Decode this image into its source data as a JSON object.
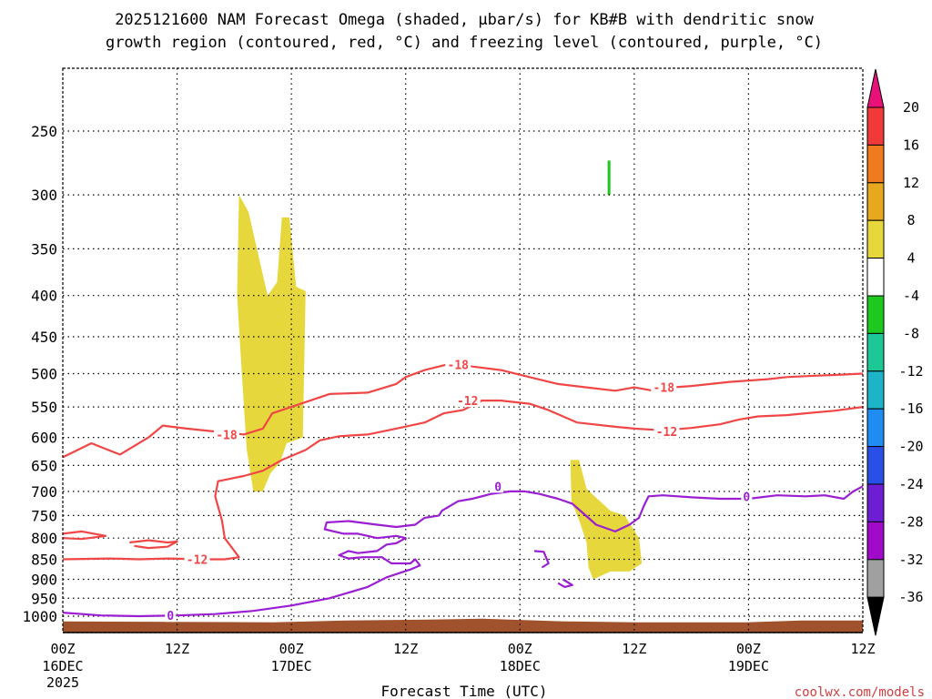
{
  "chart_data": {
    "type": "heatmap",
    "title_line1": "2025121600 NAM Forecast Omega (shaded, μbar/s) for KB#B with dendritic snow",
    "title_line2": "growth region (contoured, red, °C) and freezing level (contoured, purple, °C)",
    "xlabel": "Forecast Time (UTC)",
    "ylabel": "",
    "watermark": "coolwx.com/models",
    "x_unit": "forecast hour",
    "xlim": [
      0,
      84
    ],
    "ylim_hpa": [
      1050,
      200
    ],
    "y_ticks": [
      250,
      300,
      350,
      400,
      450,
      500,
      550,
      600,
      650,
      700,
      750,
      800,
      850,
      900,
      950,
      1000
    ],
    "x_ticks": [
      {
        "hour": 0,
        "label": "00Z",
        "sub1": "16DEC",
        "sub2": "2025"
      },
      {
        "hour": 12,
        "label": "12Z",
        "sub1": "",
        "sub2": ""
      },
      {
        "hour": 24,
        "label": "00Z",
        "sub1": "17DEC",
        "sub2": ""
      },
      {
        "hour": 36,
        "label": "12Z",
        "sub1": "",
        "sub2": ""
      },
      {
        "hour": 48,
        "label": "00Z",
        "sub1": "18DEC",
        "sub2": ""
      },
      {
        "hour": 60,
        "label": "12Z",
        "sub1": "",
        "sub2": ""
      },
      {
        "hour": 72,
        "label": "00Z",
        "sub1": "19DEC",
        "sub2": ""
      },
      {
        "hour": 84,
        "label": "12Z",
        "sub1": "",
        "sub2": ""
      }
    ],
    "colorbar": {
      "levels": [
        "20",
        "16",
        "12",
        "8",
        "4",
        "-4",
        "-8",
        "-12",
        "-16",
        "-20",
        "-24",
        "-28",
        "-32",
        "-36"
      ],
      "colors": [
        "#e8117a",
        "#f03a3a",
        "#f07a1e",
        "#e6a81e",
        "#e6d83c",
        "#ffffff",
        "#1ec81e",
        "#1ec896",
        "#1eb4c8",
        "#1e8cf0",
        "#2850e6",
        "#6e1ed2",
        "#a00ac8",
        "#a0a0a0",
        "#000000"
      ]
    },
    "omega_shaded": [
      {
        "value_range": "4 to 8",
        "color": "#e6d83c",
        "points": [
          [
            18.5,
            300
          ],
          [
            19.5,
            315
          ],
          [
            21.5,
            400
          ],
          [
            22.5,
            385
          ],
          [
            23.0,
            320
          ],
          [
            23.8,
            320
          ],
          [
            24.5,
            390
          ],
          [
            25.5,
            395
          ],
          [
            25.2,
            600
          ],
          [
            23.5,
            610
          ],
          [
            22.8,
            645
          ],
          [
            21.8,
            665
          ],
          [
            21.0,
            700
          ],
          [
            20.0,
            700
          ],
          [
            19.3,
            620
          ],
          [
            18.8,
            500
          ],
          [
            18.3,
            400
          ]
        ]
      },
      {
        "value_range": "4 to 8",
        "color": "#e6d83c",
        "points": [
          [
            53.3,
            640
          ],
          [
            54.2,
            640
          ],
          [
            55.0,
            695
          ],
          [
            57.5,
            740
          ],
          [
            59.0,
            750
          ],
          [
            60.5,
            800
          ],
          [
            60.8,
            860
          ],
          [
            59.5,
            880
          ],
          [
            57.5,
            880
          ],
          [
            55.7,
            900
          ],
          [
            55.2,
            870
          ],
          [
            55.0,
            810
          ],
          [
            54.2,
            760
          ],
          [
            53.4,
            720
          ]
        ]
      },
      {
        "value_range": "-8 to -4",
        "color": "#1ec81e",
        "points": [
          [
            57.2,
            272
          ],
          [
            57.5,
            272
          ],
          [
            57.5,
            300
          ],
          [
            57.2,
            300
          ]
        ]
      }
    ],
    "series": [
      {
        "name": "-18",
        "color": "#f04646",
        "points": [
          [
            0,
            635
          ],
          [
            3,
            610
          ],
          [
            6,
            630
          ],
          [
            9,
            600
          ],
          [
            10.5,
            580
          ],
          [
            13,
            585
          ],
          [
            16,
            590
          ],
          [
            19,
            595
          ],
          [
            21,
            585
          ],
          [
            22,
            560
          ],
          [
            25,
            545
          ],
          [
            28,
            530
          ],
          [
            32,
            528
          ],
          [
            35,
            515
          ],
          [
            36,
            505
          ],
          [
            38,
            495
          ],
          [
            41,
            485
          ],
          [
            43,
            490
          ],
          [
            46,
            495
          ],
          [
            49,
            505
          ],
          [
            52,
            515
          ],
          [
            55,
            520
          ],
          [
            58,
            525
          ],
          [
            60,
            520
          ],
          [
            62,
            525
          ],
          [
            64,
            520
          ],
          [
            66,
            518
          ],
          [
            68,
            515
          ],
          [
            70,
            512
          ],
          [
            72,
            510
          ],
          [
            74,
            508
          ],
          [
            76,
            505
          ],
          [
            79,
            503
          ],
          [
            81,
            502
          ],
          [
            84,
            500
          ]
        ],
        "labels": [
          [
            17.2,
            595
          ],
          [
            41.5,
            487
          ],
          [
            63.1,
            520
          ]
        ]
      },
      {
        "name": "-12",
        "color": "#f04646",
        "points": [
          [
            0,
            850
          ],
          [
            5,
            848
          ],
          [
            8,
            850
          ],
          [
            11,
            848
          ],
          [
            15,
            850
          ],
          [
            17,
            850
          ],
          [
            18.5,
            845
          ],
          [
            17,
            800
          ],
          [
            16.7,
            760
          ],
          [
            16,
            710
          ],
          [
            16.3,
            680
          ],
          [
            19,
            670
          ],
          [
            21,
            660
          ],
          [
            23,
            640
          ],
          [
            25.5,
            622
          ],
          [
            27,
            605
          ],
          [
            29,
            598
          ],
          [
            32,
            595
          ],
          [
            35,
            585
          ],
          [
            38,
            575
          ],
          [
            40,
            560
          ],
          [
            42,
            555
          ],
          [
            44,
            540
          ],
          [
            46,
            540
          ],
          [
            49,
            545
          ],
          [
            51,
            555
          ],
          [
            54,
            575
          ],
          [
            58,
            582
          ],
          [
            60,
            585
          ],
          [
            63,
            588
          ],
          [
            66,
            584
          ],
          [
            69,
            578
          ],
          [
            71,
            570
          ],
          [
            73,
            565
          ],
          [
            76,
            563
          ],
          [
            78,
            560
          ],
          [
            81,
            556
          ],
          [
            84,
            550
          ]
        ],
        "labels": [
          [
            14.1,
            850
          ],
          [
            42.5,
            540
          ],
          [
            63.4,
            590
          ]
        ]
      },
      {
        "name": "-12 (island)",
        "color": "#f04646",
        "points": [
          [
            0,
            790
          ],
          [
            2,
            785
          ],
          [
            4.5,
            795
          ],
          [
            2,
            802
          ],
          [
            0,
            800
          ]
        ],
        "labels": []
      },
      {
        "name": "-12 (island)",
        "color": "#f04646",
        "points": [
          [
            7,
            810
          ],
          [
            9,
            805
          ],
          [
            11,
            810
          ],
          [
            12,
            808
          ],
          [
            11,
            820
          ],
          [
            9,
            823
          ],
          [
            7.5,
            818
          ]
        ],
        "labels": []
      },
      {
        "name": "0",
        "color": "#9b1ed2",
        "points": [
          [
            0,
            990
          ],
          [
            4,
            998
          ],
          [
            8,
            1000
          ],
          [
            12,
            998
          ],
          [
            16,
            994
          ],
          [
            20,
            985
          ],
          [
            24,
            970
          ],
          [
            28,
            950
          ],
          [
            32,
            920
          ],
          [
            34,
            895
          ],
          [
            36.5,
            875
          ],
          [
            37.5,
            865
          ],
          [
            37,
            850
          ],
          [
            36.5,
            860
          ],
          [
            34.5,
            860
          ],
          [
            33.5,
            845
          ],
          [
            31.5,
            845
          ],
          [
            30,
            848
          ],
          [
            29,
            840
          ],
          [
            30,
            830
          ],
          [
            31,
            835
          ],
          [
            33,
            830
          ],
          [
            34,
            815
          ],
          [
            35,
            812
          ],
          [
            36,
            800
          ],
          [
            35,
            795
          ],
          [
            33,
            800
          ],
          [
            31,
            790
          ],
          [
            29.5,
            790
          ],
          [
            27.5,
            780
          ],
          [
            27.7,
            765
          ],
          [
            30,
            762
          ],
          [
            33,
            770
          ],
          [
            35,
            775
          ],
          [
            37,
            770
          ],
          [
            38,
            755
          ],
          [
            39.5,
            750
          ],
          [
            39.8,
            740
          ],
          [
            41.5,
            720
          ],
          [
            43,
            715
          ],
          [
            45,
            705
          ],
          [
            47,
            700
          ],
          [
            48.5,
            700
          ],
          [
            50,
            705
          ],
          [
            52,
            715
          ],
          [
            53.5,
            725
          ],
          [
            56,
            770
          ],
          [
            58,
            785
          ],
          [
            59.5,
            770
          ],
          [
            60.5,
            755
          ],
          [
            61,
            730
          ],
          [
            61.5,
            710
          ],
          [
            63,
            708
          ],
          [
            66,
            712
          ],
          [
            69,
            715
          ],
          [
            72,
            715
          ],
          [
            75,
            708
          ],
          [
            78,
            710
          ],
          [
            80,
            708
          ],
          [
            82,
            715
          ],
          [
            83,
            700
          ],
          [
            84,
            690
          ]
        ],
        "labels": [
          [
            11.3,
            998
          ],
          [
            45.7,
            690
          ],
          [
            71.8,
            710
          ]
        ]
      },
      {
        "name": "0 (island)",
        "color": "#9b1ed2",
        "points": [
          [
            49.5,
            830
          ],
          [
            50.5,
            832
          ],
          [
            51,
            860
          ],
          [
            50.3,
            870
          ]
        ],
        "labels": []
      },
      {
        "name": "0 (island)",
        "color": "#9b1ed2",
        "points": [
          [
            52.5,
            900
          ],
          [
            53.5,
            915
          ],
          [
            52.7,
            920
          ],
          [
            52.0,
            910
          ]
        ],
        "labels": []
      }
    ],
    "terrain": {
      "name": "ground",
      "color": "#a0522d",
      "surface_hpa": 1015
    }
  }
}
